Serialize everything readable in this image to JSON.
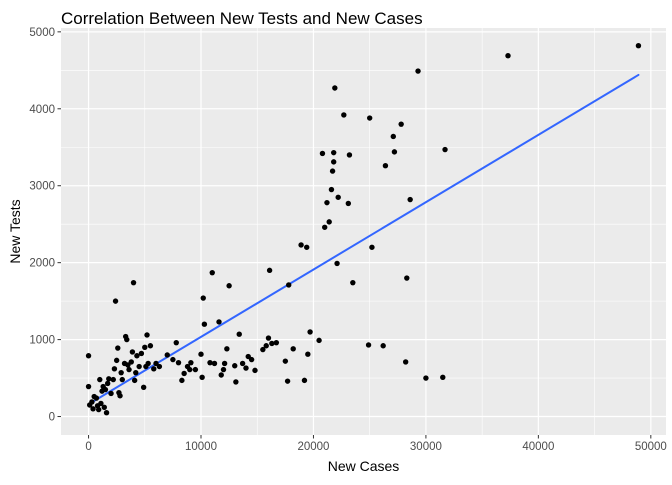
{
  "chart_data": {
    "type": "scatter",
    "title": "Correlation Between New Tests and New Cases",
    "xlabel": "New Cases",
    "ylabel": "New Tests",
    "xlim": [
      -2450,
      51350
    ],
    "ylim": [
      -240,
      5050
    ],
    "x_ticks": [
      0,
      10000,
      20000,
      30000,
      40000,
      50000
    ],
    "y_ticks": [
      0,
      1000,
      2000,
      3000,
      4000,
      5000
    ],
    "x_tick_labels": [
      "0",
      "10000",
      "20000",
      "30000",
      "40000",
      "50000"
    ],
    "y_tick_labels": [
      "0",
      "1000",
      "2000",
      "3000",
      "4000",
      "5000"
    ],
    "grid": true,
    "legend": "none",
    "background_color": "#ebebeb",
    "grid_color": "#ffffff",
    "point_color": "#000000",
    "trend_line": {
      "method": "linear",
      "color": "#3366ff",
      "x": [
        0,
        48900
      ],
      "y": [
        160,
        4440
      ]
    },
    "points": [
      [
        0,
        790
      ],
      [
        0,
        390
      ],
      [
        100,
        150
      ],
      [
        300,
        190
      ],
      [
        400,
        100
      ],
      [
        500,
        260
      ],
      [
        700,
        240
      ],
      [
        800,
        140
      ],
      [
        900,
        90
      ],
      [
        1000,
        480
      ],
      [
        1100,
        170
      ],
      [
        1200,
        330
      ],
      [
        1300,
        390
      ],
      [
        1400,
        120
      ],
      [
        1500,
        350
      ],
      [
        1600,
        50
      ],
      [
        1700,
        430
      ],
      [
        1800,
        490
      ],
      [
        2000,
        300
      ],
      [
        2200,
        480
      ],
      [
        2300,
        620
      ],
      [
        2400,
        1500
      ],
      [
        2500,
        730
      ],
      [
        2600,
        890
      ],
      [
        2700,
        310
      ],
      [
        2800,
        270
      ],
      [
        2900,
        570
      ],
      [
        3000,
        480
      ],
      [
        3200,
        690
      ],
      [
        3300,
        1040
      ],
      [
        3400,
        1000
      ],
      [
        3500,
        670
      ],
      [
        3600,
        610
      ],
      [
        3800,
        710
      ],
      [
        3900,
        840
      ],
      [
        4000,
        1740
      ],
      [
        4100,
        470
      ],
      [
        4200,
        570
      ],
      [
        4300,
        790
      ],
      [
        4500,
        650
      ],
      [
        4700,
        820
      ],
      [
        4900,
        380
      ],
      [
        5000,
        900
      ],
      [
        5100,
        650
      ],
      [
        5200,
        1060
      ],
      [
        5300,
        690
      ],
      [
        5500,
        920
      ],
      [
        5800,
        620
      ],
      [
        6000,
        690
      ],
      [
        6300,
        650
      ],
      [
        7000,
        800
      ],
      [
        7500,
        740
      ],
      [
        7800,
        960
      ],
      [
        8000,
        700
      ],
      [
        8300,
        470
      ],
      [
        8500,
        560
      ],
      [
        8800,
        650
      ],
      [
        9000,
        610
      ],
      [
        9100,
        700
      ],
      [
        9500,
        610
      ],
      [
        10000,
        810
      ],
      [
        10100,
        510
      ],
      [
        10200,
        1540
      ],
      [
        10300,
        1200
      ],
      [
        10800,
        700
      ],
      [
        11000,
        1870
      ],
      [
        11200,
        690
      ],
      [
        11600,
        1230
      ],
      [
        11800,
        540
      ],
      [
        12000,
        610
      ],
      [
        12100,
        690
      ],
      [
        12300,
        880
      ],
      [
        12500,
        1700
      ],
      [
        13000,
        660
      ],
      [
        13100,
        450
      ],
      [
        13400,
        1070
      ],
      [
        13700,
        690
      ],
      [
        14000,
        630
      ],
      [
        14200,
        780
      ],
      [
        14500,
        740
      ],
      [
        14800,
        600
      ],
      [
        15500,
        870
      ],
      [
        15800,
        920
      ],
      [
        16000,
        1020
      ],
      [
        16100,
        1900
      ],
      [
        16300,
        950
      ],
      [
        16700,
        960
      ],
      [
        17500,
        720
      ],
      [
        17700,
        460
      ],
      [
        17800,
        1710
      ],
      [
        18200,
        880
      ],
      [
        18900,
        2230
      ],
      [
        19200,
        470
      ],
      [
        19400,
        2200
      ],
      [
        19500,
        810
      ],
      [
        19700,
        1100
      ],
      [
        20500,
        990
      ],
      [
        20800,
        3420
      ],
      [
        21000,
        2460
      ],
      [
        21200,
        2780
      ],
      [
        21400,
        2530
      ],
      [
        21600,
        2950
      ],
      [
        21700,
        3190
      ],
      [
        21800,
        3310
      ],
      [
        21800,
        3430
      ],
      [
        21900,
        4270
      ],
      [
        22100,
        1990
      ],
      [
        22200,
        2850
      ],
      [
        22700,
        3920
      ],
      [
        23100,
        2770
      ],
      [
        23200,
        3400
      ],
      [
        23500,
        1740
      ],
      [
        24900,
        930
      ],
      [
        25000,
        3880
      ],
      [
        25200,
        2200
      ],
      [
        26200,
        920
      ],
      [
        26400,
        3260
      ],
      [
        27100,
        3640
      ],
      [
        27200,
        3440
      ],
      [
        27800,
        3800
      ],
      [
        28200,
        710
      ],
      [
        28300,
        1800
      ],
      [
        28600,
        2820
      ],
      [
        29300,
        4490
      ],
      [
        30000,
        500
      ],
      [
        31500,
        510
      ],
      [
        31700,
        3470
      ],
      [
        37300,
        4690
      ],
      [
        48900,
        4820
      ]
    ]
  }
}
